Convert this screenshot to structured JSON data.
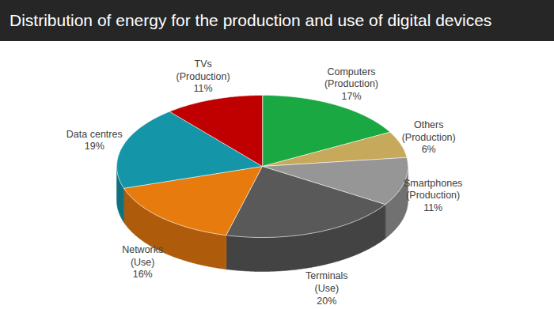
{
  "chart_data": {
    "type": "pie",
    "title": "Distribution of energy for the production and use of digital devices",
    "categories": [
      "Computers (Production)",
      "Others (Production)",
      "Smartphones (Production)",
      "Terminals (Use)",
      "Networks (Use)",
      "Data centres",
      "TVs (Production)"
    ],
    "values": [
      17,
      6,
      11,
      20,
      16,
      19,
      11
    ],
    "value_labels": [
      "17%",
      "6%",
      "11%",
      "20%",
      "16%",
      "19%",
      "11%"
    ],
    "colors": [
      "#1aa843",
      "#c6a95b",
      "#969696",
      "#595959",
      "#e87b0e",
      "#1496a8",
      "#c00000"
    ],
    "data_labels": true
  }
}
